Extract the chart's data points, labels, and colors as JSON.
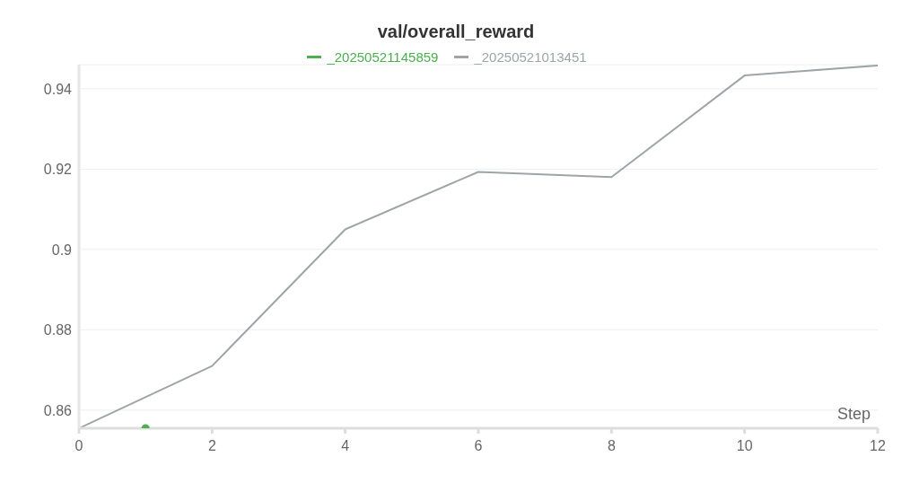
{
  "chart_data": {
    "type": "line",
    "title": "val/overall_reward",
    "xlabel": "Step",
    "series": [
      {
        "name": "_20250521145859",
        "color": "#4caf50",
        "x": [
          1
        ],
        "values": [
          0.8555
        ],
        "marker": "circle",
        "type": "scatter"
      },
      {
        "name": "_20250521013451",
        "color": "#9ea5a8",
        "x": [
          0,
          2,
          4,
          6,
          8,
          10,
          12
        ],
        "values": [
          0.8555,
          0.871,
          0.905,
          0.9193,
          0.918,
          0.9433,
          0.9458
        ],
        "marker": "none"
      }
    ],
    "xlim": [
      0,
      12
    ],
    "xticks": [
      0,
      2,
      4,
      6,
      8,
      10,
      12
    ],
    "ylim": [
      0.8555,
      0.946
    ],
    "yticks": [
      0.86,
      0.88,
      0.9,
      0.92,
      0.94
    ],
    "grid": "y",
    "legend": "top",
    "line_style": "solid"
  }
}
